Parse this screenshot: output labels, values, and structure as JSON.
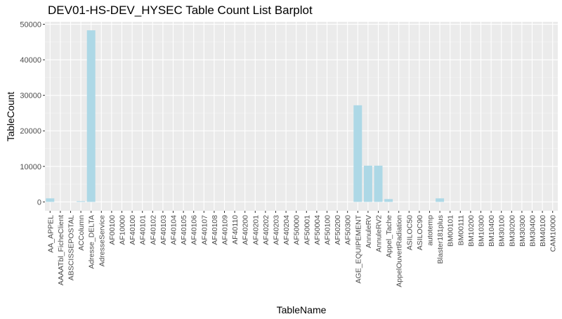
{
  "chart_data": {
    "type": "bar",
    "title": "DEV01-HS-DEV_HYSEC Table Count List Barplot",
    "xlabel": "TableName",
    "ylabel": "TableCount",
    "ylim": [
      0,
      50000
    ],
    "yticks": [
      0,
      10000,
      20000,
      30000,
      40000,
      50000
    ],
    "grid": true,
    "bar_color": "#add8e6",
    "panel_color": "#ebebeb",
    "categories": [
      "AA_APPEL",
      "AAAATbl_FicheClient",
      "ABSCISSEPOSTAL",
      "ACColumn",
      "Adresse_DELTA",
      "AdresseService",
      "AF00100",
      "AF10000",
      "AF40100",
      "AF40101",
      "AF40102",
      "AF40103",
      "AF40104",
      "AF40105",
      "AF40106",
      "AF40107",
      "AF40108",
      "AF40109",
      "AF40110",
      "AF40200",
      "AF40201",
      "AF40202",
      "AF40203",
      "AF40204",
      "AF50000",
      "AF50001",
      "AF50004",
      "AF50100",
      "AF50200",
      "AF50300",
      "AGE_EQUIPEMENT",
      "AnnuleRV",
      "AnnuleRV2",
      "Appel_Tache",
      "AppelOuvertRadiation",
      "ASILOC50",
      "ASILOC90",
      "autotemp",
      "Blaster181plus",
      "BM00101",
      "BM00111",
      "BM10200",
      "BM10300",
      "BM10400",
      "BM30100",
      "BM30200",
      "BM30300",
      "BM30400",
      "BM40100",
      "CAM10000"
    ],
    "values": [
      1000,
      0,
      0,
      200,
      48300,
      0,
      0,
      0,
      0,
      0,
      0,
      0,
      0,
      0,
      0,
      0,
      0,
      0,
      0,
      0,
      0,
      0,
      0,
      0,
      0,
      0,
      0,
      0,
      0,
      0,
      27200,
      10200,
      10200,
      800,
      0,
      0,
      0,
      0,
      1000,
      0,
      0,
      0,
      0,
      0,
      0,
      0,
      0,
      0,
      0,
      0
    ]
  }
}
